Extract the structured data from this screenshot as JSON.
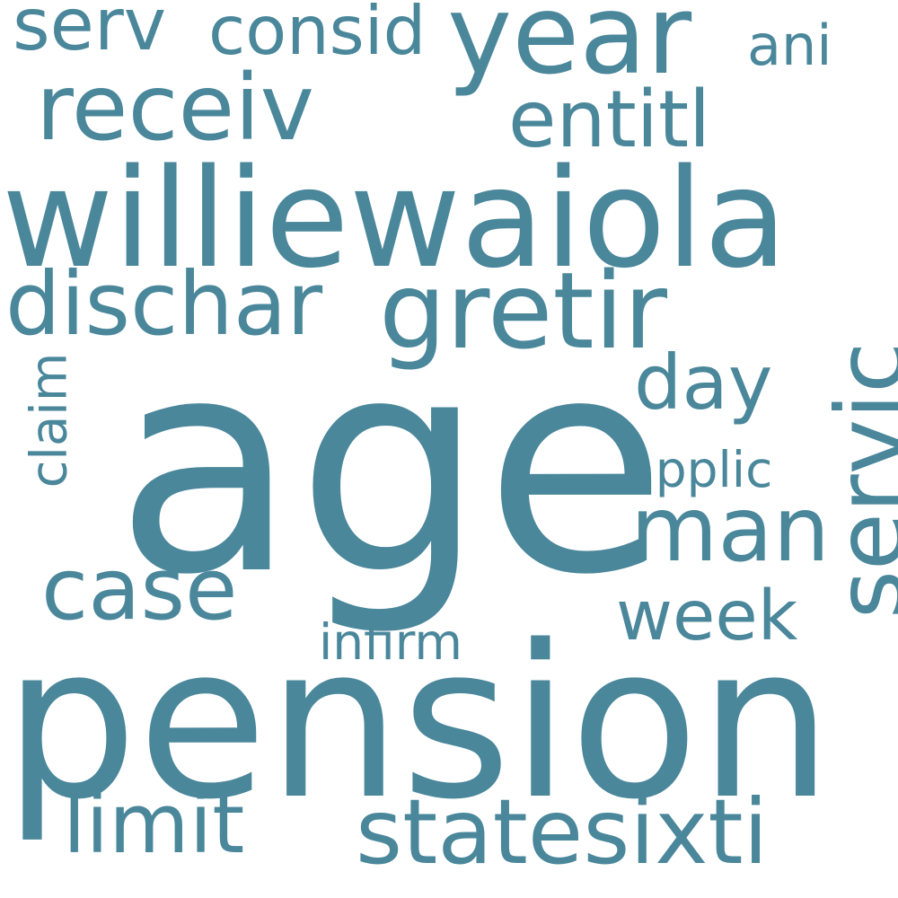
{
  "style": {
    "background_color": "#ffffff",
    "word_color": "#4a879b"
  },
  "words": {
    "age": "age",
    "pension": "pension",
    "williewaiola": "williewaiola",
    "year": "year",
    "gretir": "gretir",
    "servic": "servic",
    "receiv": "receiv",
    "statesixti": "statesixti",
    "man": "man",
    "dischar": "dischar",
    "case": "case",
    "limit": "limit",
    "entitl": "entitl",
    "day": "day",
    "serv": "serv",
    "week": "week",
    "consid": "consid",
    "claim": "claim",
    "ani": "ani",
    "applic": "applic",
    "infirm": "infirm"
  }
}
